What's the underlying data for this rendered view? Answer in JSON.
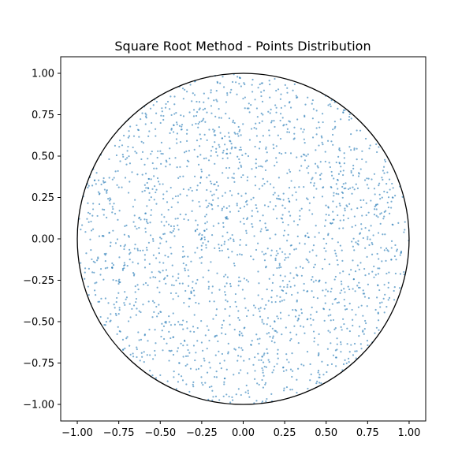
{
  "chart_data": {
    "type": "scatter",
    "title": "Square Root Method - Points Distribution",
    "xlabel": "",
    "ylabel": "",
    "xlim": [
      -1.1,
      1.1
    ],
    "ylim": [
      -1.1,
      1.1
    ],
    "grid": false,
    "xticks": [
      -1.0,
      -0.75,
      -0.5,
      -0.25,
      0.0,
      0.25,
      0.5,
      0.75,
      1.0
    ],
    "yticks": [
      -1.0,
      -0.75,
      -0.5,
      -0.25,
      0.0,
      0.25,
      0.5,
      0.75,
      1.0
    ],
    "xtick_labels": [
      "−1.00",
      "−0.75",
      "−0.50",
      "−0.25",
      "0.00",
      "0.25",
      "0.50",
      "0.75",
      "1.00"
    ],
    "ytick_labels": [
      "−1.00",
      "−0.75",
      "−0.50",
      "−0.25",
      "0.00",
      "0.25",
      "0.50",
      "0.75",
      "1.00"
    ],
    "boundary_circle": {
      "center": [
        0.0,
        0.0
      ],
      "radius": 1.0,
      "color": "#000000"
    },
    "series": [
      {
        "color": "#1f77b4",
        "alpha": 0.6,
        "count": 2000,
        "distribution": "uniform over unit disk (r = sqrt(u), theta = 2*pi*v)",
        "points": []
      }
    ]
  }
}
